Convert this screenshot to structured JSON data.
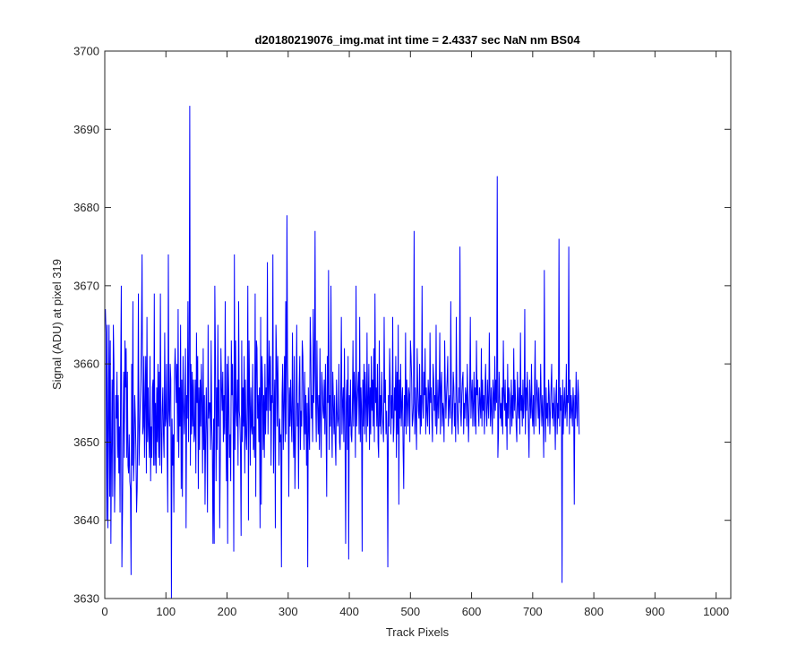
{
  "chart_data": {
    "type": "line",
    "title": "d20180219076_img.mat int time = 2.4337 sec  NaN nm BS04",
    "xlabel": "Track Pixels",
    "ylabel": "Signal (ADU) at pixel 319",
    "xlim": [
      0,
      1024
    ],
    "ylim": [
      3630,
      3700
    ],
    "xticks": [
      0,
      100,
      200,
      300,
      400,
      500,
      600,
      700,
      800,
      900,
      1000
    ],
    "yticks": [
      3630,
      3640,
      3650,
      3660,
      3670,
      3680,
      3690,
      3700
    ],
    "grid": false,
    "legend": "none",
    "series": [
      {
        "color": "#0000ff",
        "x_start": 1,
        "x_step": 1,
        "values": [
          3667,
          3664,
          3640,
          3665,
          3639,
          3652,
          3665,
          3643,
          3663,
          3637,
          3649,
          3658,
          3643,
          3665,
          3660,
          3641,
          3647,
          3656,
          3653,
          3659,
          3648,
          3656,
          3646,
          3652,
          3641,
          3659,
          3670,
          3634,
          3641,
          3652,
          3659,
          3648,
          3663,
          3657,
          3662,
          3648,
          3659,
          3647,
          3646,
          3651,
          3645,
          3644,
          3633,
          3660,
          3647,
          3668,
          3645,
          3648,
          3656,
          3653,
          3649,
          3641,
          3644,
          3652,
          3669,
          3647,
          3651,
          3655,
          3658,
          3664,
          3674,
          3651,
          3652,
          3661,
          3648,
          3655,
          3661,
          3646,
          3666,
          3650,
          3657,
          3651,
          3648,
          3661,
          3645,
          3652,
          3648,
          3657,
          3658,
          3647,
          3669,
          3647,
          3655,
          3646,
          3657,
          3650,
          3660,
          3648,
          3659,
          3647,
          3669,
          3652,
          3646,
          3654,
          3657,
          3651,
          3648,
          3664,
          3652,
          3653,
          3660,
          3649,
          3641,
          3674,
          3654,
          3652,
          3660,
          3658,
          3630,
          3653,
          3647,
          3651,
          3641,
          3658,
          3662,
          3659,
          3655,
          3660,
          3650,
          3667,
          3648,
          3657,
          3652,
          3665,
          3644,
          3658,
          3643,
          3661,
          3655,
          3651,
          3655,
          3662,
          3639,
          3656,
          3653,
          3668,
          3650,
          3661,
          3693,
          3647,
          3660,
          3651,
          3659,
          3652,
          3658,
          3650,
          3651,
          3658,
          3646,
          3664,
          3655,
          3661,
          3644,
          3657,
          3649,
          3658,
          3652,
          3660,
          3655,
          3646,
          3662,
          3649,
          3656,
          3642,
          3651,
          3657,
          3651,
          3641,
          3665,
          3653,
          3655,
          3655,
          3649,
          3663,
          3652,
          3649,
          3637,
          3653,
          3637,
          3670,
          3661,
          3645,
          3657,
          3649,
          3665,
          3652,
          3658,
          3639,
          3648,
          3662,
          3657,
          3654,
          3659,
          3650,
          3656,
          3651,
          3668,
          3653,
          3645,
          3660,
          3637,
          3661,
          3656,
          3648,
          3651,
          3645,
          3663,
          3656,
          3660,
          3652,
          3636,
          3674,
          3649,
          3663,
          3654,
          3652,
          3658,
          3647,
          3668,
          3654,
          3653,
          3649,
          3638,
          3663,
          3650,
          3657,
          3652,
          3661,
          3646,
          3658,
          3651,
          3649,
          3655,
          3670,
          3640,
          3663,
          3656,
          3647,
          3657,
          3652,
          3651,
          3660,
          3649,
          3652,
          3648,
          3669,
          3643,
          3663,
          3662,
          3653,
          3656,
          3650,
          3657,
          3639,
          3666,
          3642,
          3661,
          3658,
          3649,
          3656,
          3648,
          3660,
          3651,
          3657,
          3654,
          3673,
          3651,
          3657,
          3663,
          3654,
          3661,
          3647,
          3656,
          3655,
          3674,
          3646,
          3654,
          3658,
          3639,
          3665,
          3661,
          3652,
          3661,
          3655,
          3647,
          3653,
          3650,
          3651,
          3634,
          3656,
          3660,
          3649,
          3655,
          3661,
          3650,
          3668,
          3651,
          3679,
          3660,
          3656,
          3643,
          3657,
          3652,
          3658,
          3653,
          3650,
          3664,
          3653,
          3648,
          3661,
          3644,
          3650,
          3655,
          3665,
          3652,
          3655,
          3644,
          3657,
          3661,
          3649,
          3654,
          3652,
          3663,
          3661,
          3654,
          3649,
          3659,
          3651,
          3656,
          3647,
          3655,
          3634,
          3657,
          3652,
          3649,
          3666,
          3662,
          3653,
          3656,
          3650,
          3667,
          3655,
          3659,
          3677,
          3655,
          3650,
          3663,
          3655,
          3651,
          3656,
          3649,
          3662,
          3653,
          3648,
          3659,
          3657,
          3654,
          3653,
          3658,
          3651,
          3660,
          3652,
          3643,
          3661,
          3655,
          3672,
          3649,
          3656,
          3652,
          3670,
          3653,
          3648,
          3659,
          3655,
          3651,
          3656,
          3650,
          3647,
          3658,
          3654,
          3652,
          3653,
          3660,
          3650,
          3649,
          3656,
          3666,
          3651,
          3655,
          3657,
          3650,
          3662,
          3651,
          3637,
          3655,
          3658,
          3649,
          3661,
          3635,
          3656,
          3652,
          3658,
          3651,
          3650,
          3654,
          3663,
          3652,
          3659,
          3656,
          3648,
          3670,
          3652,
          3655,
          3657,
          3659,
          3651,
          3666,
          3650,
          3657,
          3654,
          3636,
          3658,
          3652,
          3660,
          3651,
          3659,
          3655,
          3650,
          3664,
          3652,
          3655,
          3660,
          3649,
          3657,
          3651,
          3661,
          3654,
          3658,
          3652,
          3662,
          3650,
          3669,
          3655,
          3657,
          3652,
          3660,
          3650,
          3648,
          3663,
          3652,
          3656,
          3651,
          3659,
          3654,
          3652,
          3650,
          3666,
          3655,
          3658,
          3651,
          3654,
          3650,
          3634,
          3656,
          3652,
          3662,
          3657,
          3651,
          3656,
          3653,
          3666,
          3650,
          3652,
          3657,
          3654,
          3661,
          3648,
          3659,
          3651,
          3665,
          3642,
          3658,
          3653,
          3660,
          3652,
          3655,
          3657,
          3649,
          3644,
          3656,
          3652,
          3664,
          3651,
          3658,
          3655,
          3652,
          3657,
          3656,
          3650,
          3663,
          3661,
          3658,
          3652,
          3653,
          3655,
          3677,
          3651,
          3657,
          3653,
          3649,
          3662,
          3657,
          3654,
          3653,
          3660,
          3651,
          3656,
          3652,
          3670,
          3655,
          3653,
          3659,
          3656,
          3662,
          3651,
          3657,
          3654,
          3652,
          3658,
          3656,
          3651,
          3664,
          3655,
          3657,
          3653,
          3650,
          3660,
          3658,
          3654,
          3656,
          3652,
          3665,
          3651,
          3654,
          3658,
          3653,
          3656,
          3664,
          3651,
          3657,
          3659,
          3652,
          3655,
          3654,
          3650,
          3663,
          3657,
          3653,
          3656,
          3658,
          3661,
          3652,
          3655,
          3656,
          3653,
          3668,
          3656,
          3651,
          3654,
          3659,
          3657,
          3652,
          3655,
          3650,
          3666,
          3656,
          3653,
          3651,
          3657,
          3655,
          3675,
          3654,
          3652,
          3656,
          3658,
          3659,
          3651,
          3655,
          3653,
          3657,
          3656,
          3652,
          3660,
          3655,
          3650,
          3654,
          3657,
          3666,
          3653,
          3656,
          3658,
          3652,
          3655,
          3659,
          3652,
          3657,
          3651,
          3663,
          3656,
          3658,
          3654,
          3652,
          3657,
          3655,
          3653,
          3662,
          3652,
          3658,
          3654,
          3656,
          3651,
          3657,
          3660,
          3654,
          3652,
          3658,
          3655,
          3653,
          3664,
          3656,
          3652,
          3657,
          3654,
          3651,
          3658,
          3656,
          3653,
          3661,
          3654,
          3658,
          3655,
          3684,
          3648,
          3651,
          3659,
          3656,
          3653,
          3655,
          3652,
          3657,
          3651,
          3663,
          3656,
          3654,
          3658,
          3652,
          3655,
          3649,
          3660,
          3653,
          3657,
          3656,
          3651,
          3654,
          3658,
          3652,
          3656,
          3653,
          3662,
          3654,
          3658,
          3655,
          3652,
          3650,
          3659,
          3655,
          3653,
          3657,
          3651,
          3664,
          3654,
          3656,
          3652,
          3658,
          3653,
          3655,
          3667,
          3651,
          3657,
          3654,
          3659,
          3656,
          3652,
          3648,
          3658,
          3655,
          3653,
          3660,
          3654,
          3652,
          3656,
          3651,
          3657,
          3663,
          3652,
          3655,
          3658,
          3656,
          3653,
          3657,
          3651,
          3654,
          3660,
          3655,
          3652,
          3656,
          3653,
          3648,
          3672,
          3655,
          3650,
          3657,
          3653,
          3655,
          3652,
          3658,
          3656,
          3651,
          3654,
          3657,
          3660,
          3653,
          3655,
          3652,
          3657,
          3654,
          3649,
          3656,
          3658,
          3651,
          3655,
          3653,
          3676,
          3652,
          3657,
          3654,
          3656,
          3632,
          3658,
          3651,
          3655,
          3657,
          3653,
          3654,
          3660,
          3652,
          3656,
          3655,
          3675,
          3651,
          3658,
          3653,
          3656,
          3654,
          3652,
          3657,
          3655,
          3642,
          3656,
          3653,
          3659,
          3654,
          3652,
          3658,
          3656,
          3651
        ]
      }
    ]
  }
}
